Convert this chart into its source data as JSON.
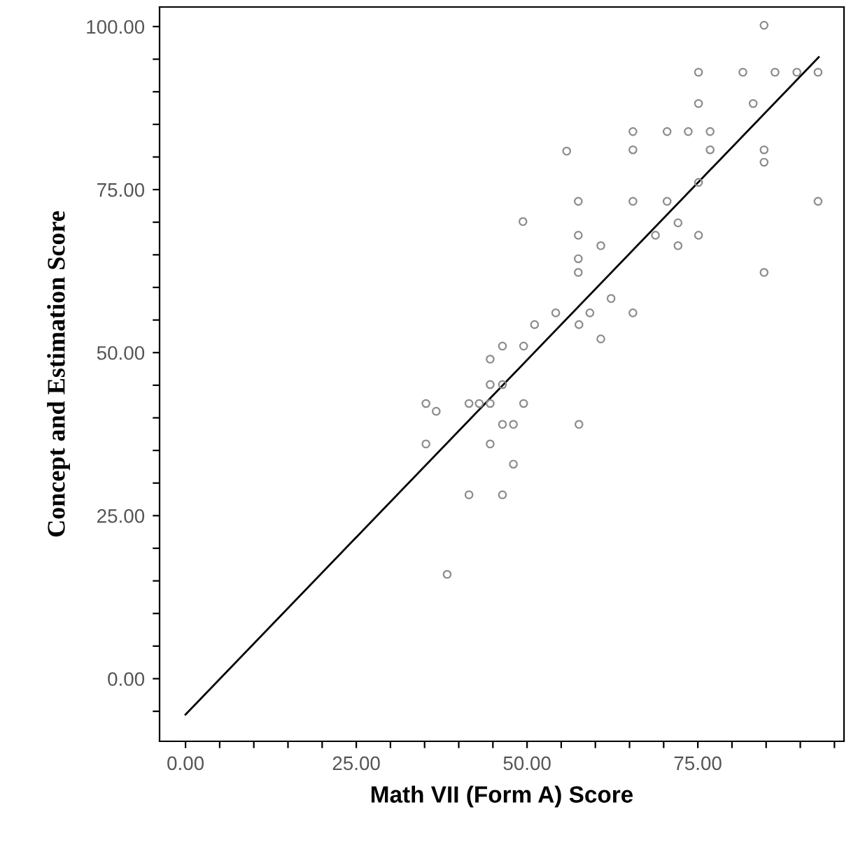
{
  "chart_data": {
    "type": "scatter",
    "xlabel": "Math VII (Form A) Score",
    "ylabel": "Concept and Estimation Score",
    "xlim": [
      -3.8,
      96.4
    ],
    "ylim": [
      -9.6,
      103
    ],
    "xticks": [
      {
        "value": 0,
        "label": "0.00"
      },
      {
        "value": 5,
        "label": null
      },
      {
        "value": 10,
        "label": null
      },
      {
        "value": 15,
        "label": null
      },
      {
        "value": 20,
        "label": null
      },
      {
        "value": 25,
        "label": "25.00"
      },
      {
        "value": 30,
        "label": null
      },
      {
        "value": 35,
        "label": null
      },
      {
        "value": 40,
        "label": null
      },
      {
        "value": 45,
        "label": null
      },
      {
        "value": 50,
        "label": "50.00"
      },
      {
        "value": 55,
        "label": null
      },
      {
        "value": 60,
        "label": null
      },
      {
        "value": 65,
        "label": null
      },
      {
        "value": 70,
        "label": null
      },
      {
        "value": 75,
        "label": "75.00"
      },
      {
        "value": 80,
        "label": null
      },
      {
        "value": 85,
        "label": null
      },
      {
        "value": 90,
        "label": null
      },
      {
        "value": 95,
        "label": null
      }
    ],
    "yticks": [
      {
        "value": -5,
        "label": null
      },
      {
        "value": 0,
        "label": "0.00"
      },
      {
        "value": 5,
        "label": null
      },
      {
        "value": 10,
        "label": null
      },
      {
        "value": 15,
        "label": null
      },
      {
        "value": 20,
        "label": null
      },
      {
        "value": 25,
        "label": "25.00"
      },
      {
        "value": 30,
        "label": null
      },
      {
        "value": 35,
        "label": null
      },
      {
        "value": 40,
        "label": null
      },
      {
        "value": 45,
        "label": null
      },
      {
        "value": 50,
        "label": "50.00"
      },
      {
        "value": 55,
        "label": null
      },
      {
        "value": 60,
        "label": null
      },
      {
        "value": 65,
        "label": null
      },
      {
        "value": 70,
        "label": null
      },
      {
        "value": 75,
        "label": "75.00"
      },
      {
        "value": 80,
        "label": null
      },
      {
        "value": 85,
        "label": null
      },
      {
        "value": 90,
        "label": null
      },
      {
        "value": 95,
        "label": null
      },
      {
        "value": 100,
        "label": "100.00"
      }
    ],
    "grid": false,
    "legend": false,
    "marker": "circle",
    "series": [
      {
        "color": "#8c8c8c",
        "x": [
          84.7,
          75.1,
          81.6,
          86.3,
          89.5,
          92.6,
          75.1,
          83.1,
          65.5,
          70.5,
          73.6,
          76.8,
          55.8,
          65.5,
          76.8,
          84.7,
          84.7,
          75.1,
          57.5,
          65.5,
          70.5,
          92.6,
          49.4,
          72.1,
          57.5,
          75.1,
          68.8,
          60.8,
          72.1,
          57.5,
          57.5,
          84.7,
          62.3,
          54.2,
          59.2,
          65.5,
          51.1,
          57.6,
          60.8,
          46.4,
          49.5,
          44.6,
          44.6,
          46.4,
          35.2,
          36.7,
          41.5,
          43.0,
          44.6,
          49.5,
          46.4,
          48.0,
          57.6,
          35.2,
          44.6,
          48.0,
          41.5,
          46.4,
          38.3
        ],
        "values": [
          100.2,
          93.0,
          93.0,
          93.0,
          93.0,
          93.0,
          88.2,
          88.2,
          83.9,
          83.9,
          83.9,
          83.9,
          80.9,
          81.1,
          81.1,
          81.1,
          79.2,
          76.1,
          73.2,
          73.2,
          73.2,
          73.2,
          70.1,
          69.9,
          68.0,
          68.0,
          68.0,
          66.4,
          66.4,
          64.4,
          62.3,
          62.3,
          58.3,
          56.1,
          56.1,
          56.1,
          54.3,
          54.3,
          52.1,
          51.0,
          51.0,
          49.0,
          45.1,
          45.1,
          42.2,
          41.0,
          42.2,
          42.2,
          42.2,
          42.2,
          39.0,
          39.0,
          39.0,
          36.0,
          36.0,
          32.9,
          28.2,
          28.2,
          16.0
        ]
      },
      {
        "type": "line",
        "color": "#000000",
        "marker": "none",
        "line_style": "solid",
        "x": [
          0,
          92.7
        ],
        "values": [
          -5.5,
          95.3
        ]
      }
    ]
  }
}
